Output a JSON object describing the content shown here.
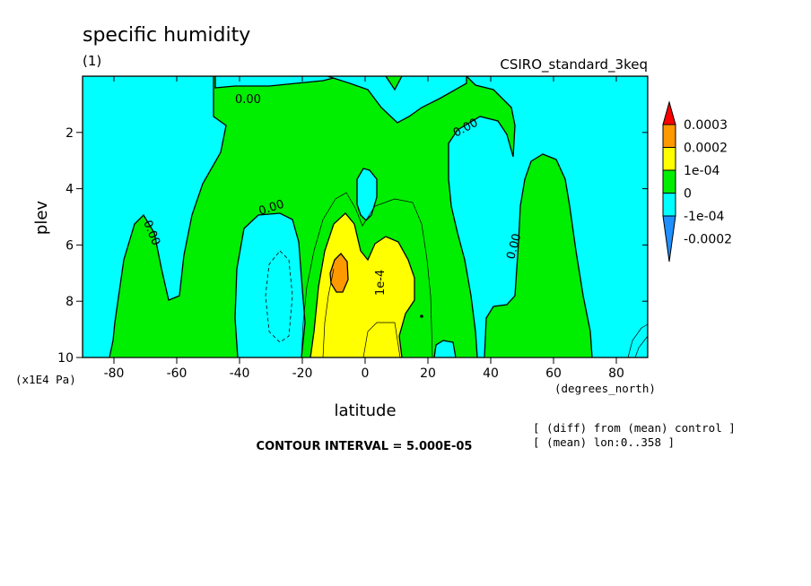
{
  "chart_data": {
    "type": "heatmap",
    "title": "specific humidity",
    "subtitle": "(1)",
    "model_label": "CSIRO_standard_3keq",
    "xlabel": "latitude",
    "x_units": "(degrees_north)",
    "ylabel": "plev",
    "y_units": "(x1E4 Pa)",
    "xlim": [
      -90,
      90
    ],
    "ylim": [
      10,
      0
    ],
    "x_ticks": [
      -80,
      -60,
      -40,
      -20,
      0,
      20,
      40,
      60,
      80
    ],
    "x_tick_labels": [
      "-80",
      "-60",
      "-40",
      "-20",
      "0",
      "20",
      "40",
      "60",
      "80"
    ],
    "y_ticks": [
      2,
      4,
      6,
      8,
      10
    ],
    "y_tick_labels": [
      "2",
      "4",
      "6",
      "8",
      "10"
    ],
    "contour_interval_text": "CONTOUR INTERVAL = 5.000E-05",
    "contour_labels": [
      "0.00",
      "0.00",
      "0.00",
      "0.00",
      "0.00",
      "1e-4"
    ],
    "colorbar": {
      "levels": [
        {
          "label": "0.0003",
          "color": "#ff0000"
        },
        {
          "label": "0.0002",
          "color": "#ff9900"
        },
        {
          "label": "1e-04",
          "color": "#ffff00"
        },
        {
          "label": "0",
          "color": "#00ee00"
        },
        {
          "label": "-1e-04",
          "color": "#00ffff"
        },
        {
          "label": "-0.0002",
          "color": "#1e90ff"
        }
      ]
    },
    "notes": [
      "[ (diff) from (mean) control ]",
      "[ (mean) lon:0..358 ]"
    ]
  }
}
